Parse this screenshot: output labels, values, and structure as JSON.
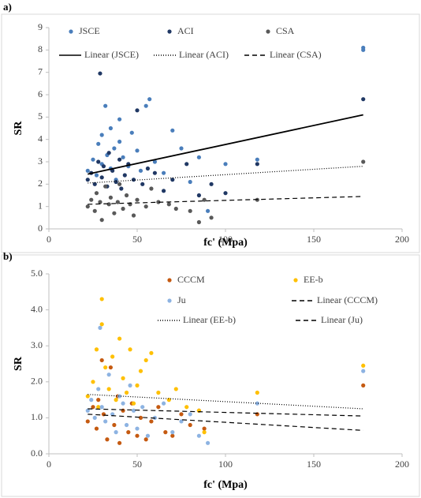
{
  "chart_data": [
    {
      "type": "scatter",
      "label": "a)",
      "xlabel": "fc' (Mpa)",
      "ylabel": "SR",
      "xlim": [
        0,
        200
      ],
      "xticks": [
        0,
        50,
        100,
        150,
        200
      ],
      "ylim": [
        0,
        9
      ],
      "yticks": [
        0,
        1,
        2,
        3,
        4,
        5,
        6,
        7,
        8,
        9
      ],
      "series": [
        {
          "name": "JSCE",
          "color": "#4a7ebb",
          "x": [
            22,
            25,
            27,
            28,
            30,
            30,
            32,
            33,
            35,
            35,
            37,
            38,
            40,
            40,
            42,
            45,
            47,
            50,
            52,
            55,
            57,
            60,
            65,
            70,
            75,
            80,
            85,
            90,
            100,
            118,
            178,
            178
          ],
          "values": [
            2.6,
            3.1,
            2.4,
            3.8,
            4.2,
            2.9,
            5.5,
            3.3,
            2.7,
            4.5,
            3.6,
            2.2,
            3.9,
            4.9,
            3.2,
            2.8,
            4.3,
            3.5,
            2.6,
            5.5,
            5.8,
            3.0,
            2.5,
            4.4,
            3.6,
            2.1,
            3.2,
            0.8,
            2.9,
            3.1,
            8.1,
            8.0
          ]
        },
        {
          "name": "ACI",
          "color": "#203864",
          "x": [
            22,
            24,
            26,
            28,
            29,
            30,
            31,
            33,
            34,
            36,
            38,
            40,
            41,
            43,
            45,
            48,
            50,
            53,
            56,
            60,
            65,
            70,
            78,
            85,
            92,
            100,
            118,
            178
          ],
          "values": [
            2.2,
            2.5,
            2.0,
            3.0,
            6.95,
            2.3,
            2.8,
            1.9,
            3.4,
            2.6,
            2.1,
            3.1,
            1.8,
            2.4,
            2.9,
            2.2,
            5.3,
            2.0,
            2.7,
            2.5,
            1.7,
            2.2,
            2.9,
            1.5,
            2.0,
            1.6,
            2.9,
            5.8
          ]
        },
        {
          "name": "CSA",
          "color": "#595959",
          "x": [
            22,
            24,
            26,
            27,
            29,
            30,
            32,
            34,
            35,
            37,
            39,
            40,
            42,
            44,
            46,
            48,
            50,
            55,
            58,
            62,
            68,
            72,
            80,
            85,
            88,
            92,
            118,
            178
          ],
          "values": [
            1.0,
            1.3,
            0.8,
            1.6,
            1.2,
            0.4,
            1.9,
            1.1,
            1.4,
            0.7,
            1.2,
            2.0,
            0.9,
            1.5,
            1.1,
            0.6,
            1.3,
            1.0,
            1.8,
            1.2,
            1.1,
            0.9,
            0.8,
            0.3,
            1.3,
            0.5,
            1.3,
            3.0
          ]
        },
        {
          "name": "Linear (JSCE)",
          "color": "#000000",
          "dash": "solid",
          "x": [
            22,
            178
          ],
          "values": [
            2.45,
            5.1
          ]
        },
        {
          "name": "Linear (ACI)",
          "color": "#000000",
          "dash": "dotted",
          "x": [
            22,
            178
          ],
          "values": [
            2.05,
            2.8
          ]
        },
        {
          "name": "Linear (CSA)",
          "color": "#000000",
          "dash": "dashed",
          "x": [
            22,
            178
          ],
          "values": [
            1.1,
            1.45
          ]
        }
      ]
    },
    {
      "type": "scatter",
      "label": "b)",
      "xlabel": "fc' (Mpa)",
      "ylabel": "SR",
      "xlim": [
        0,
        200
      ],
      "xticks": [
        0,
        50,
        100,
        150,
        200
      ],
      "ylim": [
        0,
        5
      ],
      "yticks": [
        {
          "value": 0,
          "label": "0.0"
        },
        {
          "value": 1,
          "label": "1.0"
        },
        {
          "value": 2,
          "label": "2.0"
        },
        {
          "value": 3,
          "label": "3.0"
        },
        {
          "value": 4,
          "label": "4.0"
        },
        {
          "value": 5,
          "label": "5.0"
        }
      ],
      "series": [
        {
          "name": "CCCM",
          "color": "#c55a11",
          "x": [
            22,
            25,
            27,
            28,
            30,
            31,
            33,
            35,
            37,
            39,
            40,
            42,
            45,
            47,
            50,
            52,
            55,
            58,
            62,
            66,
            70,
            75,
            80,
            85,
            88,
            118,
            178
          ],
          "values": [
            0.9,
            1.3,
            0.7,
            1.5,
            2.6,
            1.1,
            0.4,
            2.4,
            0.8,
            1.6,
            0.3,
            1.2,
            0.6,
            1.4,
            0.5,
            1.0,
            0.4,
            0.9,
            1.3,
            0.6,
            0.5,
            1.1,
            0.8,
            1.2,
            0.7,
            1.1,
            1.9
          ]
        },
        {
          "name": "EE-b",
          "color": "#ffc000",
          "x": [
            22,
            25,
            27,
            28,
            30,
            30,
            32,
            34,
            36,
            38,
            40,
            42,
            44,
            46,
            48,
            50,
            52,
            55,
            58,
            62,
            68,
            72,
            78,
            85,
            88,
            118,
            178
          ],
          "values": [
            1.6,
            2.0,
            2.9,
            1.3,
            4.3,
            3.6,
            2.4,
            1.8,
            2.7,
            1.5,
            3.2,
            2.1,
            1.7,
            2.9,
            1.4,
            1.9,
            2.3,
            2.6,
            2.8,
            1.7,
            1.5,
            1.8,
            1.3,
            1.2,
            0.6,
            1.7,
            2.45
          ]
        },
        {
          "name": "Ju",
          "color": "#8db3e2",
          "x": [
            22,
            24,
            26,
            28,
            29,
            30,
            32,
            34,
            36,
            38,
            40,
            42,
            44,
            46,
            48,
            50,
            53,
            56,
            60,
            65,
            70,
            75,
            80,
            85,
            90,
            118,
            178
          ],
          "values": [
            1.2,
            1.5,
            1.0,
            1.8,
            3.5,
            1.3,
            0.9,
            2.2,
            1.1,
            0.6,
            1.6,
            1.4,
            0.8,
            1.9,
            1.2,
            0.7,
            1.3,
            0.5,
            1.0,
            1.4,
            0.6,
            0.9,
            1.1,
            0.5,
            0.3,
            1.4,
            2.3
          ]
        },
        {
          "name": "Linear (CCCM)",
          "color": "#000000",
          "dash": "dashed",
          "x": [
            22,
            178
          ],
          "values": [
            1.25,
            1.05
          ]
        },
        {
          "name": "Linear (EE-b)",
          "color": "#000000",
          "dash": "dotted",
          "x": [
            22,
            178
          ],
          "values": [
            1.65,
            1.25
          ]
        },
        {
          "name": "Linear (Ju)",
          "color": "#000000",
          "dash": "dashed",
          "x": [
            22,
            178
          ],
          "values": [
            1.1,
            0.65
          ]
        }
      ]
    }
  ]
}
